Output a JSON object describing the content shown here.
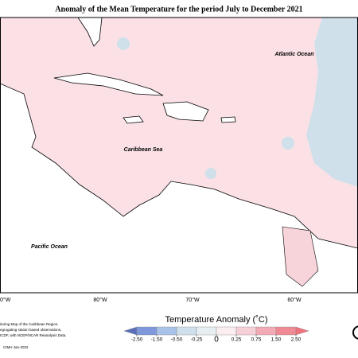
{
  "title": "Anomaly of the Mean Temperature for the period July to December 2021",
  "labels": {
    "atlantic": "Atlantic Ocean",
    "caribbean": "Caribbean Sea",
    "pacific": "Pacific Ocean"
  },
  "longitudes": [
    "0°W",
    "80°W",
    "70°W",
    "60°W"
  ],
  "legend": {
    "title": "Temperature Anomaly (˚C)",
    "ticks": [
      {
        "value": -2.5,
        "label": "-2.50"
      },
      {
        "value": -1.5,
        "label": "-1.50"
      },
      {
        "value": -0.5,
        "label": "-0.50"
      },
      {
        "value": -0.25,
        "label": "-0.25"
      },
      0,
      {
        "value": 0.25,
        "label": "0.25"
      },
      {
        "value": 0.75,
        "label": "0.75"
      },
      {
        "value": 1.5,
        "label": "1.50"
      },
      {
        "value": 2.5,
        "label": "2.50"
      }
    ],
    "colors": [
      "#5a6fb8",
      "#7f98dc",
      "#a9c2ea",
      "#cfe0ec",
      "#e6eef2",
      "#fbeef0",
      "#f7cfd6",
      "#f3aab4",
      "#ef8a94",
      "#f0707c"
    ]
  },
  "footnotes": [
    "itoring Map of the Caribbean Region.",
    "egrogating station based observations,",
    "ICDF, with NCEP/NCAR Reanalysis Data.",
    "CIMH Jan-2022"
  ]
}
